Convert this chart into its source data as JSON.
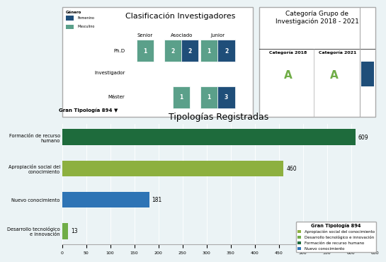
{
  "title_left": "Clasificación Investigadores",
  "title_right": "Categoría Grupo de\nInvestigación 2018 - 2021",
  "legend_gender": [
    "Femenino",
    "Masculino"
  ],
  "gender_colors": [
    "#1F4E79",
    "#5BA08A"
  ],
  "col_headers": [
    "Senior",
    "Asociado",
    "Junior"
  ],
  "row_labels": [
    "Ph.D",
    "Investigador",
    "Máster"
  ],
  "cat_2018_label": "Categoría 2018",
  "cat_2021_label": "Categoría 2021",
  "cat_2018_value": "A",
  "cat_2021_value": "A",
  "cat_color": "#70AD47",
  "bar_title": "Tipologías Registradas",
  "bar_filter_label": "Gran Tipología 894 ▼",
  "bar_categories": [
    "Formación de recurso\nhumano",
    "Apropiación social del\nconocimiento",
    "Nuevo conocimiento",
    "Desarrollo tecnológico\ne innovación"
  ],
  "bar_values": [
    609,
    460,
    181,
    13
  ],
  "bar_colors": [
    "#1E6B3C",
    "#8DB03F",
    "#2E74B5",
    "#70AD47"
  ],
  "bar_xlim": [
    0,
    650
  ],
  "bar_xticks": [
    0,
    50,
    100,
    150,
    200,
    250,
    300,
    350,
    400,
    450,
    500,
    550,
    600,
    650
  ],
  "legend_title": "Gran Tipología 894",
  "legend_items": [
    "Apropiación social del conocimiento",
    "Desarrollo tecnológico e innovación",
    "Formación de recurso humano",
    "Nuevo conocimiento"
  ],
  "legend_colors": [
    "#8DB03F",
    "#70AD47",
    "#1E6B3C",
    "#2E74B5"
  ],
  "bg_color": "#EBF3F5",
  "cell_color_teal": "#5BA08A",
  "cell_color_blue": "#1F4E79",
  "panel_bg": "white",
  "border_color": "#AAAAAA"
}
